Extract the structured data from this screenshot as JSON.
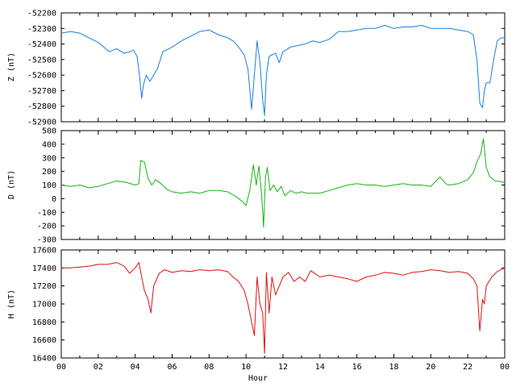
{
  "chart_data": [
    {
      "type": "line",
      "ylabel": "Z (nT)",
      "color": "#1a7fe0",
      "ylim": [
        -52900,
        -52200
      ],
      "yticks": [
        -52200,
        -52300,
        -52400,
        -52500,
        -52600,
        -52700,
        -52800,
        -52900
      ],
      "xlim": [
        0,
        24
      ],
      "series": [
        {
          "x": [
            0,
            0.5,
            1,
            1.5,
            2,
            2.3,
            2.6,
            3,
            3.4,
            3.7,
            3.9,
            4.1,
            4.25,
            4.35,
            4.45,
            4.6,
            4.8,
            5,
            5.2,
            5.5,
            6,
            6.5,
            7,
            7.5,
            8,
            8.5,
            9,
            9.3,
            9.6,
            9.9,
            10.1,
            10.3,
            10.45,
            10.6,
            10.75,
            10.9,
            11.0,
            11.1,
            11.25,
            11.4,
            11.6,
            11.8,
            12,
            12.4,
            12.8,
            13.2,
            13.6,
            14,
            14.5,
            15,
            15.5,
            16,
            16.5,
            17,
            17.5,
            18,
            18.5,
            19,
            19.5,
            20,
            20.5,
            21,
            21.5,
            22,
            22.3,
            22.5,
            22.65,
            22.8,
            22.9,
            23.0,
            23.2,
            23.4,
            23.6,
            23.8,
            24
          ],
          "values": [
            -52330,
            -52320,
            -52330,
            -52360,
            -52390,
            -52420,
            -52450,
            -52430,
            -52460,
            -52450,
            -52440,
            -52480,
            -52620,
            -52750,
            -52660,
            -52600,
            -52640,
            -52600,
            -52560,
            -52450,
            -52420,
            -52380,
            -52350,
            -52320,
            -52310,
            -52340,
            -52360,
            -52380,
            -52420,
            -52470,
            -52560,
            -52820,
            -52600,
            -52380,
            -52520,
            -52760,
            -52860,
            -52600,
            -52480,
            -52470,
            -52460,
            -52520,
            -52450,
            -52420,
            -52410,
            -52400,
            -52380,
            -52390,
            -52370,
            -52320,
            -52320,
            -52310,
            -52300,
            -52300,
            -52280,
            -52300,
            -52290,
            -52290,
            -52280,
            -52300,
            -52300,
            -52300,
            -52310,
            -52320,
            -52340,
            -52500,
            -52780,
            -52810,
            -52700,
            -52650,
            -52650,
            -52500,
            -52380,
            -52360,
            -52360
          ]
        }
      ]
    },
    {
      "type": "line",
      "ylabel": "D (nT)",
      "color": "#16b416",
      "ylim": [
        -300,
        500
      ],
      "yticks": [
        500,
        400,
        300,
        200,
        100,
        0,
        -100,
        -200,
        -300
      ],
      "xlim": [
        0,
        24
      ],
      "series": [
        {
          "x": [
            0,
            0.5,
            1,
            1.5,
            2,
            2.5,
            3,
            3.5,
            4,
            4.2,
            4.3,
            4.5,
            4.7,
            4.9,
            5.1,
            5.4,
            5.7,
            6,
            6.5,
            7,
            7.5,
            8,
            8.5,
            9,
            9.4,
            9.8,
            10.0,
            10.2,
            10.4,
            10.55,
            10.7,
            10.85,
            10.95,
            11.05,
            11.15,
            11.3,
            11.5,
            11.7,
            11.9,
            12.1,
            12.4,
            12.7,
            13,
            13.3,
            13.6,
            14,
            14.5,
            15,
            15.5,
            16,
            16.5,
            17,
            17.5,
            18,
            18.5,
            19,
            19.5,
            20,
            20.5,
            20.8,
            21,
            21.5,
            22,
            22.3,
            22.5,
            22.7,
            22.85,
            23.0,
            23.2,
            23.5,
            24
          ],
          "values": [
            100,
            90,
            100,
            80,
            90,
            110,
            130,
            120,
            100,
            110,
            280,
            270,
            150,
            100,
            140,
            110,
            70,
            50,
            40,
            50,
            40,
            60,
            60,
            50,
            20,
            -20,
            -50,
            60,
            250,
            100,
            240,
            20,
            -210,
            150,
            230,
            60,
            100,
            50,
            90,
            20,
            60,
            40,
            50,
            40,
            40,
            40,
            60,
            80,
            100,
            110,
            100,
            100,
            90,
            100,
            110,
            100,
            100,
            90,
            160,
            110,
            100,
            110,
            140,
            190,
            270,
            330,
            440,
            230,
            160,
            130,
            120
          ]
        }
      ]
    },
    {
      "type": "line",
      "ylabel": "H (nT)",
      "xlabel": "Hour",
      "color": "#e01010",
      "ylim": [
        16400,
        17600
      ],
      "yticks": [
        17600,
        17400,
        17200,
        17000,
        16800,
        16600,
        16400
      ],
      "xlim": [
        0,
        24
      ],
      "xticks": [
        "00",
        "02",
        "04",
        "06",
        "08",
        "10",
        "12",
        "14",
        "16",
        "18",
        "20",
        "22",
        "00"
      ],
      "series": [
        {
          "x": [
            0,
            0.5,
            1,
            1.5,
            2,
            2.5,
            3,
            3.4,
            3.7,
            4.0,
            4.2,
            4.35,
            4.5,
            4.7,
            4.85,
            5.0,
            5.3,
            5.6,
            6,
            6.5,
            7,
            7.5,
            8,
            8.5,
            9,
            9.3,
            9.6,
            9.9,
            10.1,
            10.3,
            10.45,
            10.6,
            10.75,
            10.9,
            11.0,
            11.1,
            11.25,
            11.4,
            11.6,
            11.8,
            12,
            12.3,
            12.6,
            12.9,
            13.2,
            13.5,
            14,
            14.5,
            15,
            15.5,
            16,
            16.5,
            17,
            17.5,
            18,
            18.5,
            19,
            19.5,
            20,
            20.5,
            21,
            21.5,
            22,
            22.3,
            22.5,
            22.65,
            22.8,
            22.9,
            23.0,
            23.3,
            23.6,
            23.9,
            24
          ],
          "values": [
            17400,
            17400,
            17410,
            17420,
            17440,
            17440,
            17460,
            17420,
            17340,
            17400,
            17460,
            17300,
            17150,
            17050,
            16900,
            17200,
            17340,
            17380,
            17350,
            17370,
            17360,
            17380,
            17370,
            17380,
            17360,
            17300,
            17250,
            17150,
            17000,
            16800,
            16650,
            17300,
            17000,
            16900,
            16450,
            17350,
            16900,
            17300,
            17100,
            17200,
            17300,
            17350,
            17250,
            17300,
            17250,
            17370,
            17300,
            17320,
            17300,
            17280,
            17250,
            17300,
            17320,
            17350,
            17340,
            17320,
            17350,
            17360,
            17380,
            17370,
            17350,
            17360,
            17340,
            17280,
            17200,
            16700,
            17050,
            17000,
            17200,
            17300,
            17360,
            17390,
            17400
          ]
        }
      ]
    }
  ]
}
